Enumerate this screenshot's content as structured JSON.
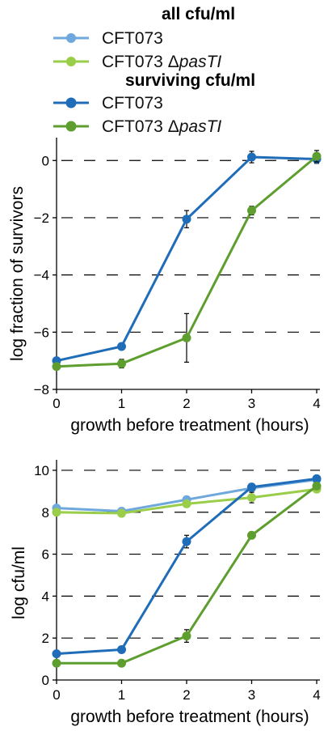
{
  "legend": {
    "all_heading": "all cfu/ml",
    "surviving_heading": "surviving cfu/ml",
    "entries": [
      {
        "group": "all",
        "label_main": "CFT073",
        "label_delta": "",
        "label_italic": "",
        "color": "#6fa8dc"
      },
      {
        "group": "all",
        "label_main": "CFT073 ",
        "label_delta": "Δ",
        "label_italic": "pasTI",
        "color": "#9acd4a"
      },
      {
        "group": "surviving",
        "label_main": "CFT073",
        "label_delta": "",
        "label_italic": "",
        "color": "#1f6cb8"
      },
      {
        "group": "surviving",
        "label_main": "CFT073 ",
        "label_delta": "Δ",
        "label_italic": "pasTI",
        "color": "#5e9e2e"
      }
    ]
  },
  "chart_data": [
    {
      "type": "line",
      "xlabel": "growth before treatment (hours)",
      "ylabel": "log fraction of survivors",
      "x": [
        0,
        1,
        2,
        3,
        4
      ],
      "xlim": [
        0,
        4
      ],
      "ylim": [
        -8,
        0.8
      ],
      "yticks": [
        0,
        -2,
        -4,
        -6,
        -8
      ],
      "ytick_labels": [
        "0",
        "−2",
        "−4",
        "−6",
        "−8"
      ],
      "grid": "dashed horizontal",
      "series": [
        {
          "name": "CFT073 surviving cfu/ml",
          "color": "#1f6cb8",
          "values": [
            -7.0,
            -6.5,
            -2.05,
            0.12,
            0.05
          ],
          "error": [
            0,
            0,
            0.3,
            0.2,
            0.15
          ]
        },
        {
          "name": "CFT073 ΔpasTI surviving cfu/ml",
          "color": "#5e9e2e",
          "values": [
            -7.2,
            -7.1,
            -6.2,
            -1.75,
            0.15
          ],
          "error": [
            0,
            0.15,
            0.85,
            0.15,
            0.2
          ]
        }
      ]
    },
    {
      "type": "line",
      "xlabel": "growth before treatment (hours)",
      "ylabel": "log cfu/ml",
      "x": [
        0,
        1,
        2,
        3,
        4
      ],
      "xlim": [
        0,
        4
      ],
      "ylim": [
        0,
        10.5
      ],
      "yticks": [
        0,
        2,
        4,
        6,
        8,
        10
      ],
      "ytick_labels": [
        "0",
        "2",
        "4",
        "6",
        "8",
        "10"
      ],
      "grid": "dashed horizontal",
      "series": [
        {
          "name": "CFT073 all cfu/ml",
          "color": "#6fa8dc",
          "values": [
            8.2,
            8.05,
            8.6,
            9.15,
            9.55
          ],
          "error": [
            0,
            0,
            0,
            0,
            0
          ]
        },
        {
          "name": "CFT073 ΔpasTI all cfu/ml",
          "color": "#9acd4a",
          "values": [
            8.0,
            7.95,
            8.4,
            8.7,
            9.1
          ],
          "error": [
            0,
            0,
            0,
            0.25,
            0
          ]
        },
        {
          "name": "CFT073 surviving cfu/ml",
          "color": "#1f6cb8",
          "values": [
            1.25,
            1.45,
            6.6,
            9.2,
            9.6
          ],
          "error": [
            0,
            0,
            0.3,
            0,
            0
          ]
        },
        {
          "name": "CFT073 ΔpasTI surviving cfu/ml",
          "color": "#5e9e2e",
          "values": [
            0.8,
            0.8,
            2.1,
            6.9,
            9.25
          ],
          "error": [
            0,
            0,
            0.3,
            0,
            0
          ]
        }
      ]
    }
  ]
}
